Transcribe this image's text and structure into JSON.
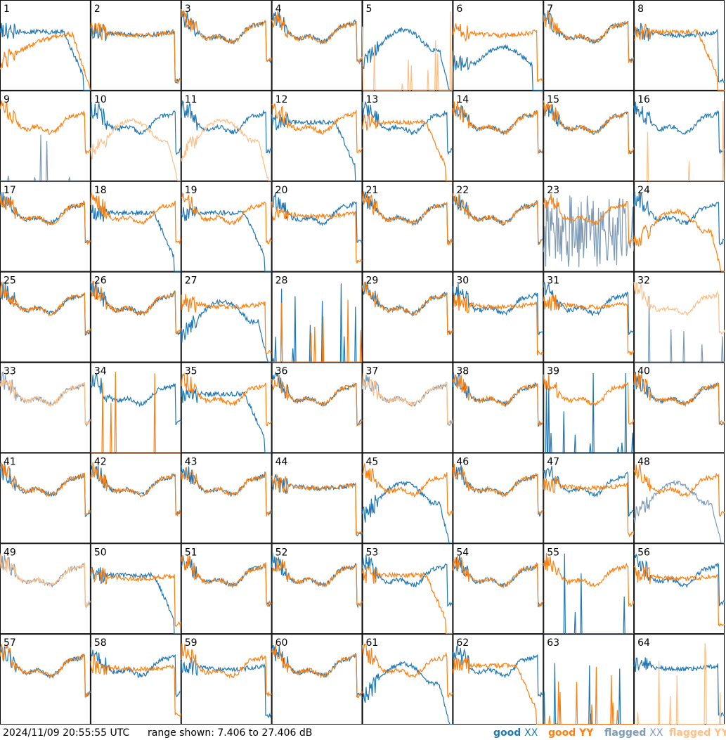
{
  "footer": {
    "timestamp": "2024/11/09 20:55:55 UTC",
    "range_text": "range shown: 7.406 to 27.406 dB"
  },
  "colors": {
    "good_xx": "#1f77b4",
    "good_yy": "#ff7f0e",
    "flagged_xx": "#7f9ab5",
    "flagged_yy": "#ffbf86",
    "frame": "#000000"
  },
  "chart_data": {
    "type": "line",
    "title": "",
    "layout": "8x8 small multiples",
    "y_range_db": [
      7.406,
      27.406
    ],
    "legend": [
      {
        "key": "good_xx",
        "label_a": "good",
        "label_b": "XX"
      },
      {
        "key": "good_yy",
        "label_a": "good",
        "label_b": "YY"
      },
      {
        "key": "flagged_xx",
        "label_a": "flagged",
        "label_b": "XX"
      },
      {
        "key": "flagged_yy",
        "label_a": "flagged",
        "label_b": "YY"
      }
    ],
    "legend_placement": "bottom-right",
    "tiles": [
      {
        "n": "1",
        "xx": "droop",
        "yy": "sagdrop",
        "xs": "good",
        "ys": "good"
      },
      {
        "n": "2",
        "xx": "flat",
        "yy": "flat",
        "xs": "good",
        "ys": "good"
      },
      {
        "n": "3",
        "xx": "bowl",
        "yy": "bowl",
        "xs": "good",
        "ys": "good"
      },
      {
        "n": "4",
        "xx": "bowl",
        "yy": "bowl",
        "xs": "good",
        "ys": "good"
      },
      {
        "n": "5",
        "xx": "hump",
        "yy": "dead",
        "xs": "good",
        "ys": "flagged"
      },
      {
        "n": "6",
        "xx": "deep",
        "yy": "flat",
        "xs": "good",
        "ys": "good"
      },
      {
        "n": "7",
        "xx": "bowl",
        "yy": "bowl",
        "xs": "good",
        "ys": "good"
      },
      {
        "n": "8",
        "xx": "flat",
        "yy": "droop",
        "xs": "good",
        "ys": "good"
      },
      {
        "n": "9",
        "xx": "dead",
        "yy": "bowl",
        "xs": "flagged",
        "ys": "good"
      },
      {
        "n": "10",
        "xx": "bowl",
        "yy": "hump",
        "xs": "good",
        "ys": "flagged"
      },
      {
        "n": "11",
        "xx": "bowl",
        "yy": "hump",
        "xs": "good",
        "ys": "flagged"
      },
      {
        "n": "12",
        "xx": "droop",
        "yy": "bowl",
        "xs": "good",
        "ys": "good"
      },
      {
        "n": "13",
        "xx": "bowl",
        "yy": "droop",
        "xs": "good",
        "ys": "good"
      },
      {
        "n": "14",
        "xx": "bowl",
        "yy": "bowl",
        "xs": "good",
        "ys": "good"
      },
      {
        "n": "15",
        "xx": "bowl",
        "yy": "bowl",
        "xs": "good",
        "ys": "good"
      },
      {
        "n": "16",
        "xx": "bowl",
        "yy": "dead",
        "xs": "good",
        "ys": "flagged"
      },
      {
        "n": "17",
        "xx": "bowl",
        "yy": "bowl",
        "xs": "good",
        "ys": "good"
      },
      {
        "n": "18",
        "xx": "droop",
        "yy": "bowl",
        "xs": "good",
        "ys": "good"
      },
      {
        "n": "19",
        "xx": "droop",
        "yy": "bowl",
        "xs": "good",
        "ys": "good"
      },
      {
        "n": "20",
        "xx": "bowl",
        "yy": "flat",
        "xs": "good",
        "ys": "good"
      },
      {
        "n": "21",
        "xx": "bowl",
        "yy": "bowl",
        "xs": "good",
        "ys": "good"
      },
      {
        "n": "22",
        "xx": "bowl",
        "yy": "bowl",
        "xs": "good",
        "ys": "good"
      },
      {
        "n": "23",
        "xx": "noise",
        "yy": "bowl",
        "xs": "flagged",
        "ys": "good"
      },
      {
        "n": "24",
        "xx": "bowl",
        "yy": "hump",
        "xs": "good",
        "ys": "good"
      },
      {
        "n": "25",
        "xx": "bowl",
        "yy": "bowl",
        "xs": "good",
        "ys": "good"
      },
      {
        "n": "26",
        "xx": "bowl",
        "yy": "bowl",
        "xs": "good",
        "ys": "good"
      },
      {
        "n": "27",
        "xx": "hump",
        "yy": "flat",
        "xs": "good",
        "ys": "good"
      },
      {
        "n": "28",
        "xx": "dead",
        "yy": "dead",
        "xs": "good",
        "ys": "good"
      },
      {
        "n": "29",
        "xx": "bowl",
        "yy": "bowl",
        "xs": "good",
        "ys": "good"
      },
      {
        "n": "30",
        "xx": "bowl",
        "yy": "flat",
        "xs": "good",
        "ys": "good"
      },
      {
        "n": "31",
        "xx": "bowl",
        "yy": "flat",
        "xs": "good",
        "ys": "good"
      },
      {
        "n": "32",
        "xx": "dead",
        "yy": "bowl",
        "xs": "flagged",
        "ys": "flagged"
      },
      {
        "n": "33",
        "xx": "bowl",
        "yy": "bowl",
        "xs": "flagged",
        "ys": "flagged"
      },
      {
        "n": "34",
        "xx": "bowl",
        "yy": "dead",
        "xs": "good",
        "ys": "good"
      },
      {
        "n": "35",
        "xx": "droop",
        "yy": "bowl",
        "xs": "good",
        "ys": "good"
      },
      {
        "n": "36",
        "xx": "bowl",
        "yy": "bowl",
        "xs": "good",
        "ys": "good"
      },
      {
        "n": "37",
        "xx": "bowl",
        "yy": "bowl",
        "xs": "flagged",
        "ys": "flagged"
      },
      {
        "n": "38",
        "xx": "bowl",
        "yy": "bowl",
        "xs": "good",
        "ys": "good"
      },
      {
        "n": "39",
        "xx": "dead",
        "yy": "bowl",
        "xs": "good",
        "ys": "good"
      },
      {
        "n": "40",
        "xx": "bowl",
        "yy": "bowl",
        "xs": "good",
        "ys": "good"
      },
      {
        "n": "41",
        "xx": "bowl",
        "yy": "bowl",
        "xs": "good",
        "ys": "good"
      },
      {
        "n": "42",
        "xx": "bowl",
        "yy": "bowl",
        "xs": "good",
        "ys": "good"
      },
      {
        "n": "43",
        "xx": "bowl",
        "yy": "bowl",
        "xs": "good",
        "ys": "good"
      },
      {
        "n": "44",
        "xx": "flat",
        "yy": "flat",
        "xs": "good",
        "ys": "good"
      },
      {
        "n": "45",
        "xx": "hump",
        "yy": "bowl",
        "xs": "good",
        "ys": "good"
      },
      {
        "n": "46",
        "xx": "bowl",
        "yy": "bowl",
        "xs": "good",
        "ys": "good"
      },
      {
        "n": "47",
        "xx": "bowl",
        "yy": "flat",
        "xs": "good",
        "ys": "good"
      },
      {
        "n": "48",
        "xx": "hump",
        "yy": "bowl",
        "xs": "flagged",
        "ys": "good"
      },
      {
        "n": "49",
        "xx": "bowl",
        "yy": "bowl",
        "xs": "flagged",
        "ys": "flagged"
      },
      {
        "n": "50",
        "xx": "droop",
        "yy": "flat",
        "xs": "good",
        "ys": "good"
      },
      {
        "n": "51",
        "xx": "bowl",
        "yy": "bowl",
        "xs": "good",
        "ys": "good"
      },
      {
        "n": "52",
        "xx": "bowl",
        "yy": "bowl",
        "xs": "good",
        "ys": "good"
      },
      {
        "n": "53",
        "xx": "bowl",
        "yy": "droop",
        "xs": "good",
        "ys": "good"
      },
      {
        "n": "54",
        "xx": "bowl",
        "yy": "bowl",
        "xs": "good",
        "ys": "good"
      },
      {
        "n": "55",
        "xx": "dead",
        "yy": "bowl",
        "xs": "good",
        "ys": "good"
      },
      {
        "n": "56",
        "xx": "bowl",
        "yy": "flat",
        "xs": "good",
        "ys": "good"
      },
      {
        "n": "57",
        "xx": "bowl",
        "yy": "bowl",
        "xs": "good",
        "ys": "good"
      },
      {
        "n": "58",
        "xx": "bowl",
        "yy": "flat",
        "xs": "good",
        "ys": "good"
      },
      {
        "n": "59",
        "xx": "flat",
        "yy": "bowl",
        "xs": "good",
        "ys": "good"
      },
      {
        "n": "60",
        "xx": "bowl",
        "yy": "bowl",
        "xs": "good",
        "ys": "good"
      },
      {
        "n": "61",
        "xx": "hump",
        "yy": "bowl",
        "xs": "good",
        "ys": "good"
      },
      {
        "n": "62",
        "xx": "bowl",
        "yy": "droop",
        "xs": "good",
        "ys": "good"
      },
      {
        "n": "63",
        "xx": "dead",
        "yy": "dead",
        "xs": "good",
        "ys": "good"
      },
      {
        "n": "64",
        "xx": "flat",
        "yy": "dead",
        "xs": "good",
        "ys": "flagged"
      }
    ]
  }
}
